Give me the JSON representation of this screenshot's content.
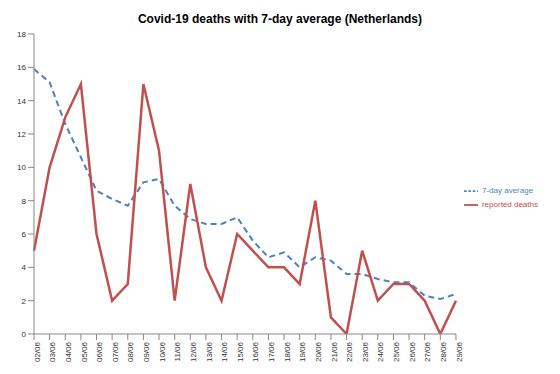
{
  "chart_data": {
    "type": "line",
    "title": "Covid-19 deaths with 7-day average (Netherlands)",
    "categories": [
      "02/06",
      "03/06",
      "04/06",
      "05/06",
      "06/06",
      "07/06",
      "08/06",
      "09/06",
      "10/06",
      "11/06",
      "12/06",
      "13/06",
      "14/06",
      "15/06",
      "16/06",
      "17/06",
      "18/06",
      "19/06",
      "20/06",
      "21/06",
      "22/06",
      "23/06",
      "24/06",
      "25/06",
      "26/06",
      "27/06",
      "28/06",
      "29/06"
    ],
    "series": [
      {
        "name": "7-day average",
        "color": "#4f81bd",
        "line_style": "dashed",
        "values": [
          15.9,
          15.1,
          12.6,
          10.6,
          8.6,
          8.1,
          7.7,
          9.1,
          9.3,
          7.7,
          6.9,
          6.6,
          6.6,
          7.0,
          5.6,
          4.6,
          4.9,
          4.0,
          4.6,
          4.4,
          3.6,
          3.6,
          3.3,
          3.1,
          3.1,
          2.3,
          2.1,
          2.4
        ]
      },
      {
        "name": "reported deaths",
        "color": "#c0504d",
        "line_style": "solid",
        "values": [
          5,
          10,
          13,
          15,
          6,
          2,
          3,
          15,
          11,
          2,
          9,
          4,
          2,
          6,
          5,
          4,
          4,
          3,
          8,
          1,
          0,
          5,
          2,
          3,
          3,
          2,
          0,
          2
        ]
      }
    ],
    "ylim": [
      0,
      18
    ],
    "yticks": [
      0,
      2,
      4,
      6,
      8,
      10,
      12,
      14,
      16,
      18
    ],
    "grid": false,
    "legend": "right"
  }
}
